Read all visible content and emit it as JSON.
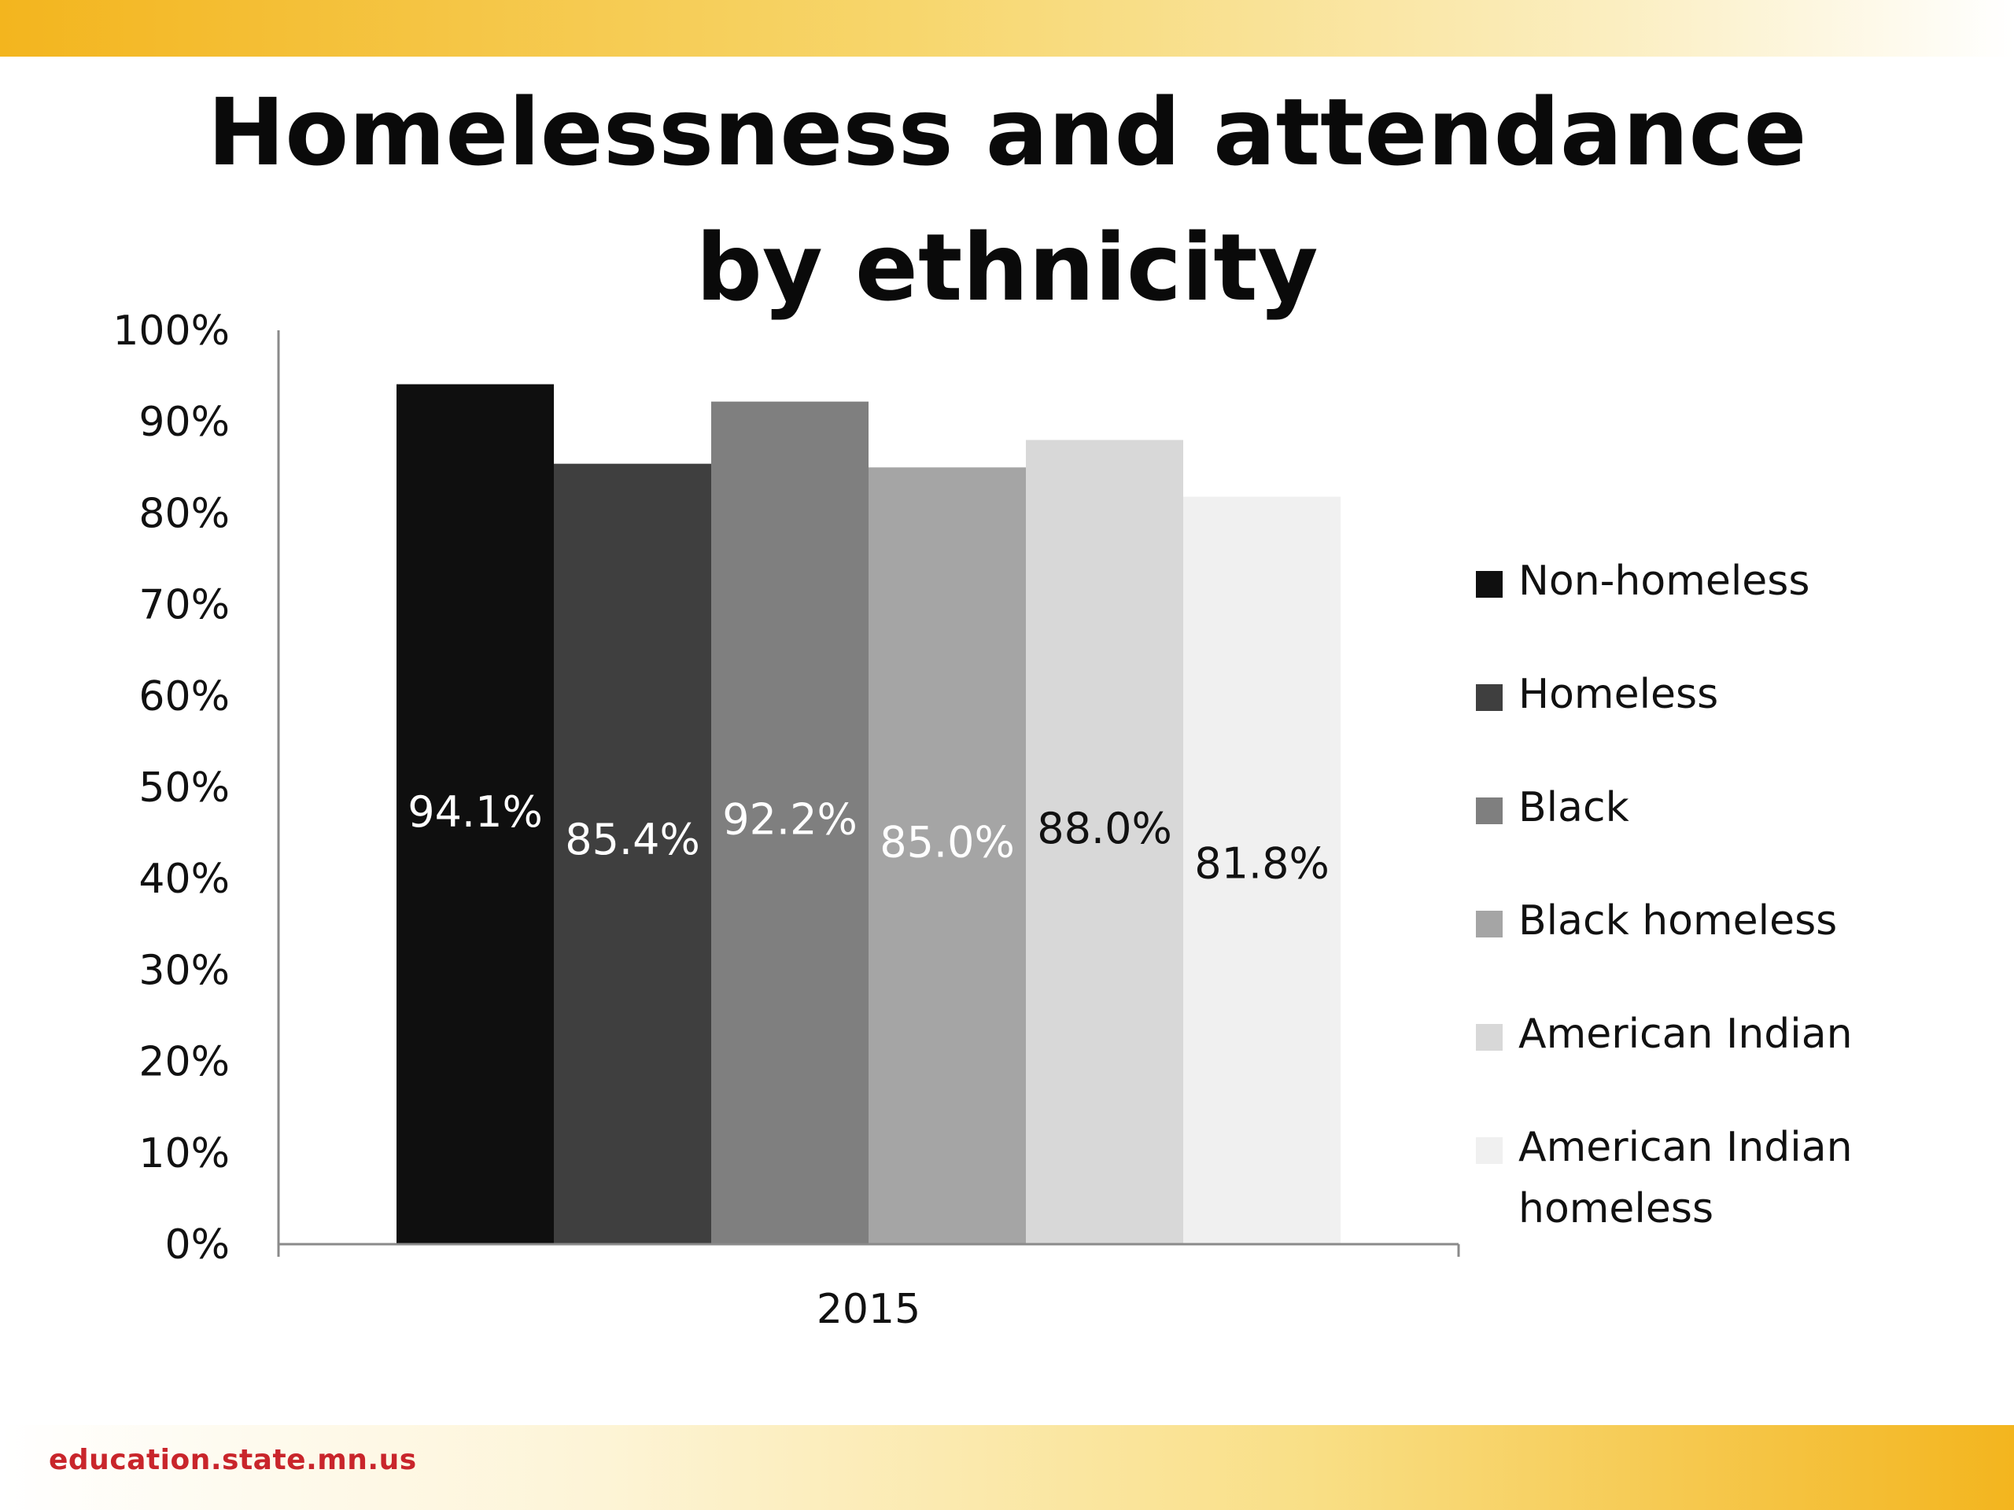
{
  "slide": {
    "title": "Homelessness and attendance by ethnicity",
    "footer_url": "education.state.mn.us",
    "brand_colors": {
      "gold": "#f3b51e",
      "red": "#c9252b"
    }
  },
  "chart_data": {
    "type": "bar",
    "title": "Homelessness and attendance by ethnicity",
    "categories": [
      "2015"
    ],
    "xlabel": "",
    "ylabel": "",
    "ylim": [
      0,
      1
    ],
    "yticks": [
      "0%",
      "10%",
      "20%",
      "30%",
      "40%",
      "50%",
      "60%",
      "70%",
      "80%",
      "90%",
      "100%"
    ],
    "grid": false,
    "legend_position": "right",
    "series": [
      {
        "name": "Non-homeless",
        "values": [
          0.941
        ],
        "label": "94.1%",
        "color": "#0f0f0f",
        "label_color": "#ffffff"
      },
      {
        "name": "Homeless",
        "values": [
          0.854
        ],
        "label": "85.4%",
        "color": "#3f3f3f",
        "label_color": "#ffffff"
      },
      {
        "name": "Black",
        "values": [
          0.922
        ],
        "label": "92.2%",
        "color": "#7f7f7f",
        "label_color": "#ffffff"
      },
      {
        "name": "Black homeless",
        "values": [
          0.85
        ],
        "label": "85.0%",
        "color": "#a5a5a5",
        "label_color": "#ffffff"
      },
      {
        "name": "American Indian",
        "values": [
          0.88
        ],
        "label": "88.0%",
        "color": "#d8d8d8",
        "label_color": "#111111"
      },
      {
        "name": "American Indian homeless",
        "values": [
          0.818
        ],
        "label": "81.8%",
        "color": "#f0f0f0",
        "label_color": "#111111"
      }
    ]
  }
}
